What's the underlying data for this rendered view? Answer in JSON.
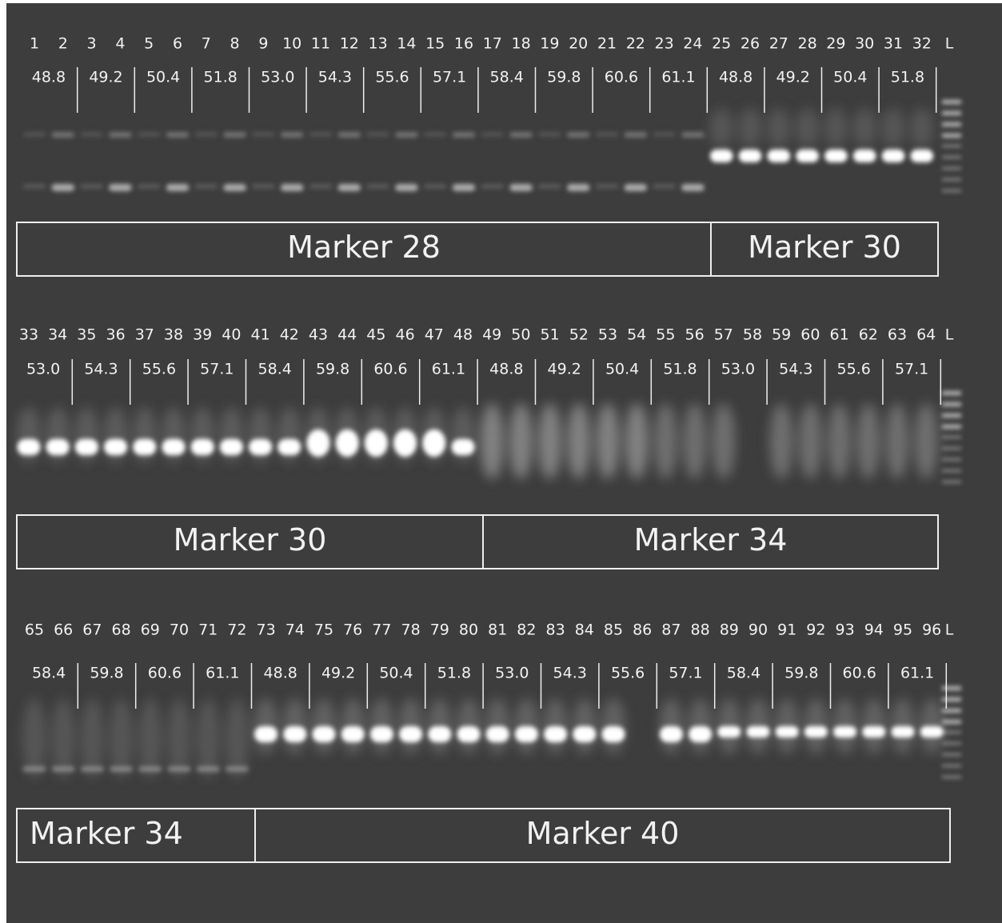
{
  "rows": [
    {
      "lanes": [
        1,
        2,
        3,
        4,
        5,
        6,
        7,
        8,
        9,
        10,
        11,
        12,
        13,
        14,
        15,
        16,
        17,
        18,
        19,
        20,
        21,
        22,
        23,
        24,
        25,
        26,
        27,
        28,
        29,
        30,
        31,
        32,
        "L"
      ],
      "temperatures": [
        "48.8",
        "49.2",
        "50.4",
        "51.8",
        "53.0",
        "54.3",
        "55.6",
        "57.1",
        "58.4",
        "59.8",
        "60.6",
        "61.1",
        "48.8",
        "49.2",
        "50.4",
        "51.8"
      ],
      "markers": [
        "Marker 28",
        "Marker 30"
      ]
    },
    {
      "lanes": [
        33,
        34,
        35,
        36,
        37,
        38,
        39,
        40,
        41,
        42,
        43,
        44,
        45,
        46,
        47,
        48,
        49,
        50,
        51,
        52,
        53,
        54,
        55,
        56,
        57,
        58,
        59,
        60,
        61,
        62,
        63,
        64,
        "L"
      ],
      "temperatures": [
        "53.0",
        "54.3",
        "55.6",
        "57.1",
        "58.4",
        "59.8",
        "60.6",
        "61.1",
        "48.8",
        "49.2",
        "50.4",
        "51.8",
        "53.0",
        "54.3",
        "55.6",
        "57.1"
      ],
      "markers": [
        "Marker 30",
        "Marker 34"
      ]
    },
    {
      "lanes": [
        65,
        66,
        67,
        68,
        69,
        70,
        71,
        72,
        73,
        74,
        75,
        76,
        77,
        78,
        79,
        80,
        81,
        82,
        83,
        84,
        85,
        86,
        87,
        88,
        89,
        90,
        91,
        92,
        93,
        94,
        95,
        96,
        "L"
      ],
      "temperatures": [
        "58.4",
        "59.8",
        "60.6",
        "61.1",
        "48.8",
        "49.2",
        "50.4",
        "51.8",
        "53.0",
        "54.3",
        "55.6",
        "57.1",
        "58.4",
        "59.8",
        "60.6",
        "61.1"
      ],
      "markers": [
        "Marker 34",
        "Marker 40"
      ]
    }
  ]
}
